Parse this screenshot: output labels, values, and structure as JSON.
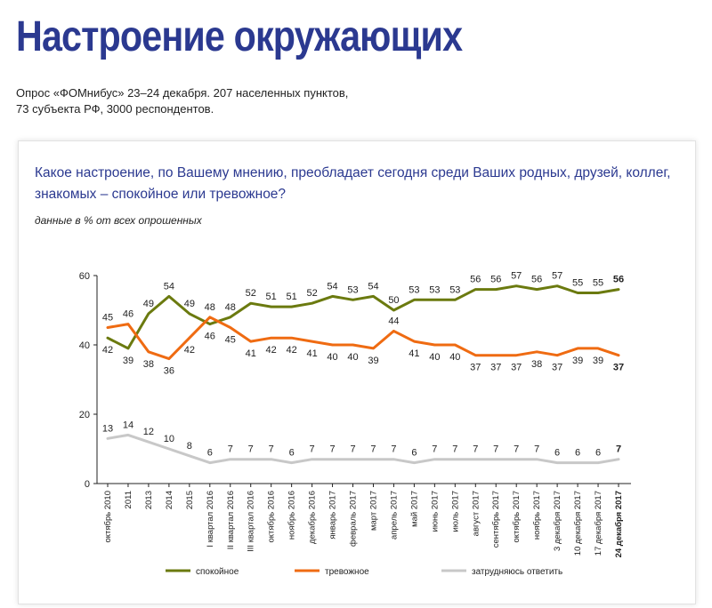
{
  "header": {
    "title": "Настроение окружающих",
    "subtitle_line1": "Опрос «ФОМнибус» 23–24 декабря. 207 населенных пунктов,",
    "subtitle_line2": "73 субъекта РФ, 3000 респондентов."
  },
  "panel": {
    "question": "Какое настроение, по Вашему мнению, преобладает сегодня среди Ваших родных, друзей, коллег, знакомых – спокойное или тревожное?",
    "note": "данные в % от всех опрошенных"
  },
  "chart_data": {
    "type": "line",
    "categories": [
      "октябрь 2010",
      "2011",
      "2013",
      "2014",
      "2015",
      "I квартал 2016",
      "II квартал 2016",
      "III квартал 2016",
      "октябрь 2016",
      "ноябрь 2016",
      "декабрь 2016",
      "январь 2017",
      "февраль 2017",
      "март 2017",
      "апрель 2017",
      "май 2017",
      "июнь 2017",
      "июль 2017",
      "август 2017",
      "сентябрь 2017",
      "октябрь 2017",
      "ноябрь 2017",
      "3 декабря 2017",
      "10 декабря 2017",
      "17 декабря 2017",
      "24 декабря 2017"
    ],
    "y_ticks": [
      "0",
      "20",
      "40",
      "60"
    ],
    "ylim": [
      0,
      60
    ],
    "grid": false,
    "legend_position": "bottom",
    "series": [
      {
        "name": "спокойное",
        "color": "#6b7a0f",
        "values": [
          42,
          39,
          49,
          54,
          49,
          46,
          48,
          52,
          51,
          51,
          52,
          54,
          53,
          54,
          50,
          53,
          53,
          53,
          56,
          56,
          57,
          56,
          57,
          55,
          55,
          56
        ],
        "label_pos": [
          "b",
          "b",
          "t",
          "t",
          "t",
          "b",
          "t",
          "t",
          "t",
          "t",
          "t",
          "t",
          "t",
          "t",
          "t",
          "t",
          "t",
          "t",
          "t",
          "t",
          "t",
          "t",
          "t",
          "t",
          "t",
          "t"
        ]
      },
      {
        "name": "тревожное",
        "color": "#ef6b12",
        "values": [
          45,
          46,
          38,
          36,
          42,
          48,
          45,
          41,
          42,
          42,
          41,
          40,
          40,
          39,
          44,
          41,
          40,
          40,
          37,
          37,
          37,
          38,
          37,
          39,
          39,
          37
        ],
        "label_pos": [
          "t",
          "t",
          "b",
          "b",
          "b",
          "t",
          "b",
          "b",
          "b",
          "b",
          "b",
          "b",
          "b",
          "b",
          "t",
          "b",
          "b",
          "b",
          "b",
          "b",
          "b",
          "b",
          "b",
          "b",
          "b",
          "b"
        ]
      },
      {
        "name": "затрудняюсь ответить",
        "color": "#c8c8c8",
        "values": [
          13,
          14,
          12,
          10,
          8,
          6,
          7,
          7,
          7,
          6,
          7,
          7,
          7,
          7,
          7,
          6,
          7,
          7,
          7,
          7,
          7,
          7,
          6,
          6,
          6,
          7
        ],
        "label_pos": [
          "t",
          "t",
          "t",
          "t",
          "t",
          "t",
          "t",
          "t",
          "t",
          "t",
          "t",
          "t",
          "t",
          "t",
          "t",
          "t",
          "t",
          "t",
          "t",
          "t",
          "t",
          "t",
          "t",
          "t",
          "t",
          "t"
        ]
      }
    ],
    "bold_last_category": true
  }
}
